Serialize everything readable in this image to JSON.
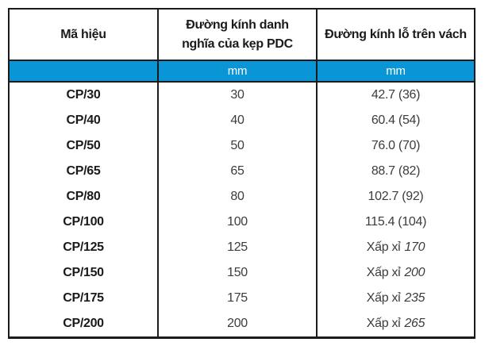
{
  "colors": {
    "accent": "#0A96D6",
    "line": "#1b1b1b",
    "text-dark": "#1a1a1a",
    "text-val": "#3c3c3c"
  },
  "table": {
    "headers": {
      "col1": "Mã hiệu",
      "col2": "Đường kính danh\nnghĩa của kẹp PDC",
      "col3": "Đường kính lỗ trên vách"
    },
    "units": {
      "col1": "",
      "col2": "mm",
      "col3": "mm"
    },
    "rows": [
      {
        "code": "CP/30",
        "nominal": "30",
        "hole": "42.7 (36)",
        "hole_italic": ""
      },
      {
        "code": "CP/40",
        "nominal": "40",
        "hole": "60.4 (54)",
        "hole_italic": ""
      },
      {
        "code": "CP/50",
        "nominal": "50",
        "hole": "76.0 (70)",
        "hole_italic": ""
      },
      {
        "code": "CP/65",
        "nominal": "65",
        "hole": "88.7 (82)",
        "hole_italic": ""
      },
      {
        "code": "CP/80",
        "nominal": "80",
        "hole": "102.7 (92)",
        "hole_italic": ""
      },
      {
        "code": "CP/100",
        "nominal": "100",
        "hole": "115.4 (104)",
        "hole_italic": ""
      },
      {
        "code": "CP/125",
        "nominal": "125",
        "hole": "Xấp xỉ",
        "hole_italic": "170"
      },
      {
        "code": "CP/150",
        "nominal": "150",
        "hole": "Xấp xỉ",
        "hole_italic": "200"
      },
      {
        "code": "CP/175",
        "nominal": "175",
        "hole": "Xấp xỉ",
        "hole_italic": "235"
      },
      {
        "code": "CP/200",
        "nominal": "200",
        "hole": "Xấp xỉ",
        "hole_italic": "265"
      }
    ]
  }
}
